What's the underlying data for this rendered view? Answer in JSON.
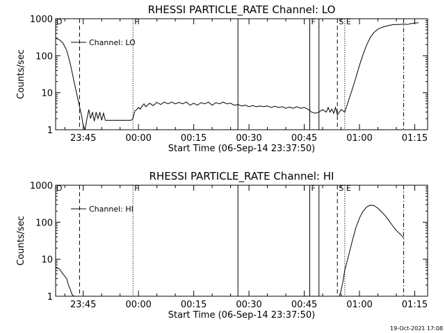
{
  "footer": {
    "date_stamp": "19-Oct-2021 17:08"
  },
  "chart_data": [
    {
      "type": "line",
      "title": "RHESSI PARTICLE_RATE Channel: LO",
      "xlabel": "Start Time (06-Sep-14 23:37:50)",
      "ylabel": "Counts/sec",
      "yscale": "log",
      "ylim": [
        1,
        1000
      ],
      "xlim_minutes": [
        -22.5,
        78.5
      ],
      "xtick_labels": [
        "23:45",
        "00:00",
        "00:15",
        "00:30",
        "00:45",
        "01:00",
        "01:15"
      ],
      "xtick_minutes": [
        -15,
        0,
        15,
        30,
        45,
        60,
        75
      ],
      "ytick_labels": [
        "1",
        "10",
        "100",
        "1000"
      ],
      "ytick_values": [
        1,
        10,
        100,
        1000
      ],
      "legend": "Channel: LO",
      "legend_position": "top-left",
      "series": [
        {
          "name": "Channel: LO",
          "x_minutes": [
            -22.5,
            -21.5,
            -20.5,
            -19.5,
            -18.5,
            -17.5,
            -16.5,
            -15.5,
            -15,
            -14.5,
            -14,
            -13.5,
            -13,
            -12.5,
            -12,
            -11.5,
            -11,
            -10.5,
            -10,
            -9.5,
            -9,
            -8.5,
            -8,
            -7.5,
            -7,
            -6.5,
            -6,
            -5.5,
            -5,
            -4,
            -3,
            -2,
            -1.5,
            -1,
            -0.5,
            0,
            0.5,
            1,
            1.5,
            2,
            3,
            4,
            5,
            6,
            7,
            8,
            9,
            10,
            11,
            12,
            13,
            14,
            15,
            16,
            17,
            18,
            19,
            20,
            21,
            22,
            23,
            24,
            25,
            26,
            27,
            28,
            29,
            30,
            31,
            32,
            33,
            34,
            35,
            36,
            37,
            38,
            39,
            40,
            41,
            42,
            43,
            44,
            45,
            46,
            47,
            48,
            49,
            50,
            51,
            51.5,
            52,
            52.5,
            53,
            53.5,
            54,
            55,
            56,
            57,
            58,
            59,
            60,
            61,
            62,
            63,
            64,
            65,
            66,
            67,
            68,
            69,
            70,
            71,
            72,
            73,
            74,
            75,
            76
          ],
          "y": [
            300,
            270,
            220,
            140,
            60,
            20,
            7,
            2.5,
            1.3,
            1,
            2,
            3.5,
            2,
            3,
            1.7,
            3,
            2,
            3,
            1.8,
            2.8,
            1.8,
            1.8,
            1.8,
            1.8,
            1.8,
            1.8,
            1.8,
            1.8,
            1.8,
            1.8,
            1.8,
            1.8,
            2,
            3.2,
            3.5,
            4,
            3.6,
            4.4,
            5,
            4.2,
            5.2,
            4.5,
            5.5,
            4.8,
            5.6,
            5,
            5.6,
            5,
            5.5,
            5,
            5.6,
            4.6,
            5.2,
            4.6,
            5.4,
            5,
            5.6,
            4.6,
            5.4,
            5,
            5.6,
            5,
            5.2,
            4.6,
            4.8,
            4.4,
            4.6,
            4.2,
            4.5,
            4.2,
            4.4,
            4.2,
            4.4,
            4,
            4.3,
            4,
            4.2,
            3.8,
            4.1,
            3.8,
            4.2,
            3.8,
            4,
            3.6,
            3,
            2.8,
            3,
            3.5,
            3,
            4,
            3,
            3.6,
            2.8,
            4,
            2.5,
            3.5,
            3,
            6,
            12,
            25,
            55,
            110,
            200,
            320,
            430,
            520,
            580,
            620,
            660,
            690,
            700,
            700,
            720,
            700,
            740,
            760,
            780
          ]
        }
      ],
      "vlines": [
        {
          "minute": -16,
          "style": "dashed",
          "label": ""
        },
        {
          "minute": -1.5,
          "style": "dotted",
          "label": "F"
        },
        {
          "minute": 27,
          "style": "solid",
          "label": ""
        },
        {
          "minute": 46.5,
          "style": "solid",
          "label": "F"
        },
        {
          "minute": 49,
          "style": "solid",
          "label": ""
        },
        {
          "minute": 54,
          "style": "dashed",
          "label": "S"
        },
        {
          "minute": 56,
          "style": "dotted",
          "label": "E"
        },
        {
          "minute": 72,
          "style": "dashdot",
          "label": ""
        }
      ],
      "corner_flag": "D"
    },
    {
      "type": "line",
      "title": "RHESSI PARTICLE_RATE Channel: HI",
      "xlabel": "Start Time (06-Sep-14 23:37:50)",
      "ylabel": "Counts/sec",
      "yscale": "log",
      "ylim": [
        1,
        1000
      ],
      "xlim_minutes": [
        -22.5,
        78.5
      ],
      "xtick_labels": [
        "23:45",
        "00:00",
        "00:15",
        "00:30",
        "00:45",
        "01:00",
        "01:15"
      ],
      "xtick_minutes": [
        -15,
        0,
        15,
        30,
        45,
        60,
        75
      ],
      "ytick_labels": [
        "1",
        "10",
        "100",
        "1000"
      ],
      "ytick_values": [
        1,
        10,
        100,
        1000
      ],
      "legend": "Channel: HI",
      "legend_position": "top-left",
      "series": [
        {
          "name": "Channel: HI",
          "segments": [
            {
              "x_minutes": [
                -22.5,
                -21.5,
                -20.5,
                -19.5,
                -19,
                -18.5,
                -18,
                -17.5
              ],
              "y": [
                6,
                5.5,
                4,
                3,
                2,
                1.5,
                1.1,
                1
              ]
            },
            {
              "x_minutes": [
                54.5,
                55,
                55.5,
                56,
                57,
                58,
                59,
                60,
                61,
                62,
                63,
                64,
                65,
                66,
                67,
                68,
                69,
                70,
                71,
                72
              ],
              "y": [
                1,
                1.4,
                2.5,
                5,
                12,
                30,
                70,
                130,
                200,
                260,
                290,
                280,
                240,
                190,
                150,
                110,
                80,
                60,
                48,
                38
              ]
            }
          ]
        }
      ],
      "vlines": [
        {
          "minute": -16,
          "style": "dashed",
          "label": ""
        },
        {
          "minute": -1.5,
          "style": "dotted",
          "label": "F"
        },
        {
          "minute": 27,
          "style": "solid",
          "label": ""
        },
        {
          "minute": 46.5,
          "style": "solid",
          "label": "F"
        },
        {
          "minute": 49,
          "style": "solid",
          "label": ""
        },
        {
          "minute": 54,
          "style": "dashed",
          "label": "S"
        },
        {
          "minute": 56,
          "style": "dotted",
          "label": "E"
        },
        {
          "minute": 72,
          "style": "dashdot",
          "label": ""
        }
      ],
      "corner_flag": "D"
    }
  ]
}
